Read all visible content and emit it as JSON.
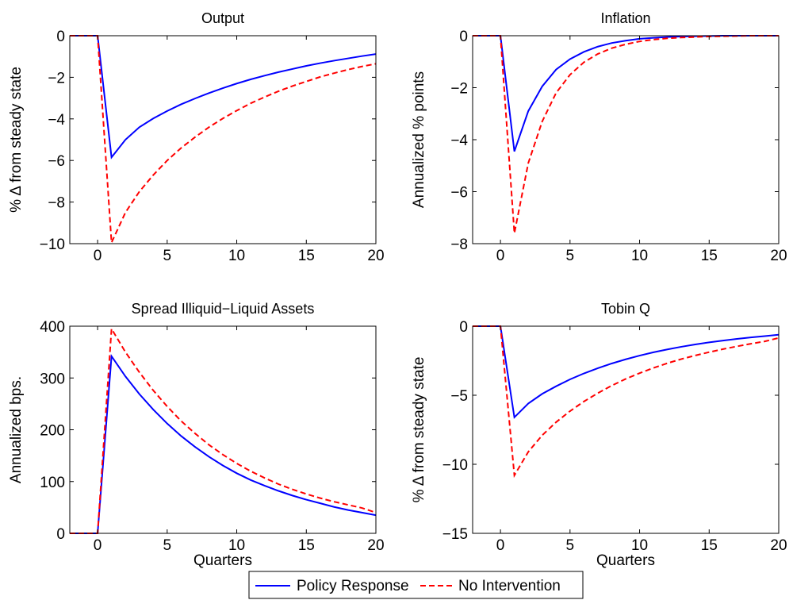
{
  "chart_data": [
    {
      "type": "line",
      "title": "Output",
      "xlabel": "",
      "ylabel": "% Δ from steady state",
      "xlim": [
        -2,
        20
      ],
      "ylim": [
        -10,
        0
      ],
      "xticks": [
        0,
        5,
        10,
        15,
        20
      ],
      "yticks": [
        0,
        -2,
        -4,
        -6,
        -8,
        -10
      ],
      "x": [
        -2,
        -1,
        0,
        1,
        2,
        3,
        4,
        5,
        6,
        7,
        8,
        9,
        10,
        11,
        12,
        13,
        14,
        15,
        16,
        17,
        18,
        19,
        20
      ],
      "series": [
        {
          "name": "Policy Response",
          "color": "#0000ff",
          "style": "solid",
          "values": [
            0,
            0,
            0,
            -5.85,
            -5.0,
            -4.4,
            -3.98,
            -3.62,
            -3.3,
            -3.02,
            -2.76,
            -2.52,
            -2.3,
            -2.1,
            -1.92,
            -1.75,
            -1.6,
            -1.45,
            -1.32,
            -1.2,
            -1.09,
            -0.98,
            -0.88
          ]
        },
        {
          "name": "No Intervention",
          "color": "#ff0000",
          "style": "dashed",
          "values": [
            0,
            0,
            0,
            -9.95,
            -8.5,
            -7.5,
            -6.7,
            -6.0,
            -5.4,
            -4.88,
            -4.4,
            -3.98,
            -3.6,
            -3.25,
            -2.95,
            -2.67,
            -2.42,
            -2.2,
            -1.98,
            -1.8,
            -1.63,
            -1.48,
            -1.35
          ]
        }
      ]
    },
    {
      "type": "line",
      "title": "Inflation",
      "xlabel": "",
      "ylabel": "Annualized % points",
      "xlim": [
        -2,
        20
      ],
      "ylim": [
        -8,
        0
      ],
      "xticks": [
        0,
        5,
        10,
        15,
        20
      ],
      "yticks": [
        0,
        -2,
        -4,
        -6,
        -8
      ],
      "x": [
        -2,
        -1,
        0,
        1,
        2,
        3,
        4,
        5,
        6,
        7,
        8,
        9,
        10,
        11,
        12,
        13,
        14,
        15,
        16,
        17,
        18,
        19,
        20
      ],
      "series": [
        {
          "name": "Policy Response",
          "color": "#0000ff",
          "style": "solid",
          "values": [
            0,
            0,
            0,
            -4.45,
            -2.9,
            -1.95,
            -1.3,
            -0.9,
            -0.62,
            -0.42,
            -0.28,
            -0.19,
            -0.12,
            -0.08,
            -0.05,
            -0.03,
            -0.02,
            -0.01,
            0,
            0,
            0,
            0,
            0
          ]
        },
        {
          "name": "No Intervention",
          "color": "#ff0000",
          "style": "dashed",
          "values": [
            0,
            0,
            0,
            -7.6,
            -4.9,
            -3.3,
            -2.2,
            -1.5,
            -1.02,
            -0.7,
            -0.48,
            -0.33,
            -0.22,
            -0.15,
            -0.1,
            -0.07,
            -0.05,
            -0.03,
            -0.02,
            -0.01,
            0,
            0,
            0
          ]
        }
      ]
    },
    {
      "type": "line",
      "title": "Spread Illiquid−Liquid Assets",
      "xlabel": "Quarters",
      "ylabel": "Annualized bps.",
      "xlim": [
        -2,
        20
      ],
      "ylim": [
        0,
        400
      ],
      "xticks": [
        0,
        5,
        10,
        15,
        20
      ],
      "yticks": [
        0,
        100,
        200,
        300,
        400
      ],
      "x": [
        -2,
        -1,
        0,
        1,
        2,
        3,
        4,
        5,
        6,
        7,
        8,
        9,
        10,
        11,
        12,
        13,
        14,
        15,
        16,
        17,
        18,
        19,
        20
      ],
      "series": [
        {
          "name": "Policy Response",
          "color": "#0000ff",
          "style": "solid",
          "values": [
            0,
            0,
            0,
            342,
            303,
            269,
            239,
            212,
            188,
            167,
            148,
            131,
            116,
            103,
            92,
            82,
            73,
            65,
            58,
            51,
            45,
            40,
            35
          ]
        },
        {
          "name": "No Intervention",
          "color": "#ff0000",
          "style": "dashed",
          "values": [
            0,
            0,
            0,
            395,
            350,
            311,
            276,
            245,
            217,
            193,
            171,
            152,
            135,
            120,
            107,
            95,
            85,
            76,
            68,
            61,
            55,
            49,
            40
          ]
        }
      ]
    },
    {
      "type": "line",
      "title": "Tobin Q",
      "xlabel": "Quarters",
      "ylabel": "% Δ from steady state",
      "xlim": [
        -2,
        20
      ],
      "ylim": [
        -15,
        0
      ],
      "xticks": [
        0,
        5,
        10,
        15,
        20
      ],
      "yticks": [
        0,
        -5,
        -10,
        -15
      ],
      "x": [
        -2,
        -1,
        0,
        1,
        2,
        3,
        4,
        5,
        6,
        7,
        8,
        9,
        10,
        11,
        12,
        13,
        14,
        15,
        16,
        17,
        18,
        19,
        20
      ],
      "series": [
        {
          "name": "Policy Response",
          "color": "#0000ff",
          "style": "solid",
          "values": [
            0,
            0,
            0,
            -6.6,
            -5.6,
            -4.9,
            -4.35,
            -3.85,
            -3.42,
            -3.04,
            -2.7,
            -2.4,
            -2.13,
            -1.89,
            -1.68,
            -1.49,
            -1.32,
            -1.17,
            -1.04,
            -0.92,
            -0.81,
            -0.72,
            -0.62
          ]
        },
        {
          "name": "No Intervention",
          "color": "#ff0000",
          "style": "dashed",
          "values": [
            0,
            0,
            0,
            -10.8,
            -9.1,
            -7.9,
            -6.95,
            -6.15,
            -5.45,
            -4.85,
            -4.3,
            -3.82,
            -3.4,
            -3.02,
            -2.68,
            -2.38,
            -2.12,
            -1.88,
            -1.66,
            -1.46,
            -1.27,
            -1.1,
            -0.85
          ]
        }
      ]
    }
  ],
  "legend": {
    "placement": "bottom-center",
    "entries": [
      {
        "label": "Policy Response",
        "color": "#0000ff",
        "style": "solid"
      },
      {
        "label": "No Intervention",
        "color": "#ff0000",
        "style": "dashed"
      }
    ]
  }
}
